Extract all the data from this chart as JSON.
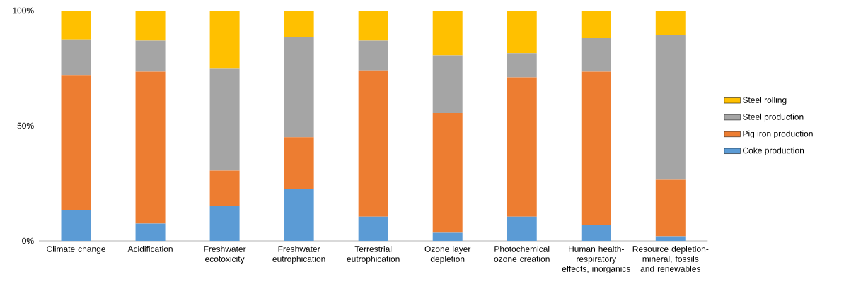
{
  "chart_data": {
    "type": "bar",
    "stacked": true,
    "categories": [
      "Climate change",
      "Acidification",
      "Freshwater ecotoxicity",
      "Freshwater eutrophication",
      "Terrestrial eutrophication",
      "Ozone layer depletion",
      "Photochemical ozone creation",
      "Human health-respiratory effects, inorganics",
      "Resource depletion-mineral, fossils and renewables"
    ],
    "series": [
      {
        "name": "Coke production",
        "color": "#5b9bd5",
        "values": [
          13.5,
          7.5,
          15,
          22.5,
          10.5,
          3.5,
          10.5,
          7,
          2
        ]
      },
      {
        "name": "Pig iron production",
        "color": "#ed7d31",
        "values": [
          58.5,
          66,
          15.5,
          22.5,
          63.5,
          52,
          60.5,
          66.5,
          24.5
        ]
      },
      {
        "name": "Steel production",
        "color": "#a5a5a5",
        "values": [
          15.5,
          13.5,
          44.5,
          43.5,
          13,
          25,
          10.5,
          14.5,
          63
        ]
      },
      {
        "name": "Steel rolling",
        "color": "#ffc000",
        "values": [
          12.5,
          13,
          25,
          11.5,
          13,
          19.5,
          18.5,
          12,
          10.5
        ]
      }
    ],
    "ylim": [
      0,
      100
    ],
    "yticks": [
      {
        "value": 0,
        "label": "0%"
      },
      {
        "value": 50,
        "label": "50%"
      },
      {
        "value": 100,
        "label": "100%"
      }
    ],
    "legend": "right"
  }
}
